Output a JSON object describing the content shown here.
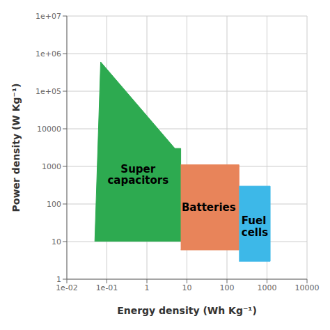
{
  "chart_data": {
    "type": "polygon",
    "xlabel": "Energy density (Wh Kg⁻¹)",
    "ylabel": "Power density (W Kg⁻¹)",
    "log": true,
    "grid": true,
    "xlim": [
      0.01,
      10000
    ],
    "ylim": [
      1,
      10000000
    ],
    "xticks": [
      {
        "value": 0.01,
        "label": "1e-02"
      },
      {
        "value": 0.1,
        "label": "1e-01"
      },
      1,
      10,
      100,
      1000,
      10000
    ],
    "yticks": [
      1,
      10,
      100,
      1000,
      10000,
      {
        "value": 100000,
        "label": "1e+05"
      },
      {
        "value": 1000000,
        "label": "1e+06"
      },
      {
        "value": 10000000,
        "label": "1e+07"
      }
    ],
    "series": [
      {
        "name": "Super\ncapacitors",
        "color": "#2daa50",
        "points": [
          [
            0.05,
            10
          ],
          [
            0.07,
            600000
          ],
          [
            5,
            3000
          ],
          [
            7,
            3000
          ],
          [
            7,
            10
          ]
        ],
        "label_at": [
          0.6,
          600
        ]
      },
      {
        "name": "Batteries",
        "color": "#e8845a",
        "points": [
          [
            7,
            6
          ],
          [
            200,
            6
          ],
          [
            200,
            1100
          ],
          [
            7,
            1100
          ]
        ],
        "label_at": [
          35,
          80
        ]
      },
      {
        "name": "Fuel\ncells",
        "color": "#3db8e8",
        "points": [
          [
            200,
            3
          ],
          [
            1200,
            3
          ],
          [
            1200,
            300
          ],
          [
            200,
            300
          ]
        ],
        "label_at": [
          230,
          25
        ]
      }
    ]
  }
}
